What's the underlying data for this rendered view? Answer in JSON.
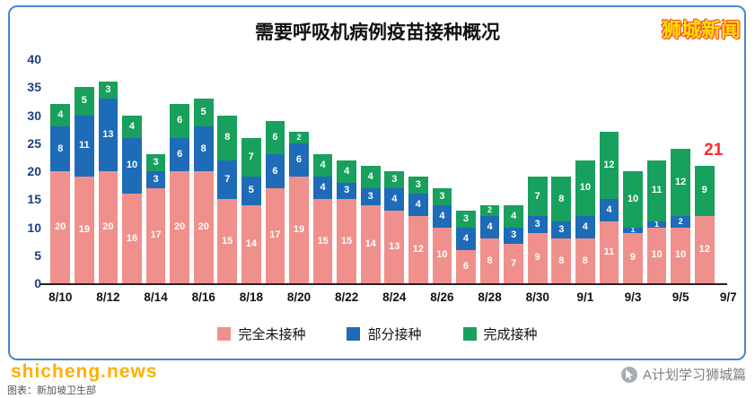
{
  "watermarks": {
    "top_right": "狮城新闻",
    "bottom_left": "shicheng.news",
    "source_note": "图表：新加坡卫生部",
    "bottom_right": "A计划学习狮城篇"
  },
  "chart_data": {
    "type": "bar",
    "stacked": true,
    "title": "需要呼吸机病例疫苗接种概况",
    "ylim": [
      0,
      40
    ],
    "yticks": [
      0,
      5,
      10,
      15,
      20,
      25,
      30,
      35,
      40
    ],
    "grid": false,
    "legend_position": "bottom",
    "xtick_labels": [
      "8/10",
      "8/12",
      "8/14",
      "8/16",
      "8/18",
      "8/20",
      "8/22",
      "8/24",
      "8/26",
      "8/28",
      "8/30",
      "9/1",
      "9/3",
      "9/5",
      "9/7"
    ],
    "categories": [
      "8/10",
      "8/11",
      "8/12",
      "8/13",
      "8/14",
      "8/15",
      "8/16",
      "8/17",
      "8/18",
      "8/19",
      "8/20",
      "8/21",
      "8/22",
      "8/23",
      "8/24",
      "8/25",
      "8/26",
      "8/27",
      "8/28",
      "8/29",
      "8/30",
      "8/31",
      "9/1",
      "9/2",
      "9/3",
      "9/4",
      "9/5",
      "9/6"
    ],
    "series": [
      {
        "name": "完全未接种",
        "color": "#f0908c",
        "values": [
          20,
          19,
          20,
          16,
          17,
          20,
          20,
          15,
          14,
          17,
          19,
          15,
          15,
          14,
          13,
          12,
          10,
          6,
          8,
          7,
          9,
          8,
          8,
          11,
          9,
          10,
          10,
          12
        ]
      },
      {
        "name": "部分接种",
        "color": "#1e6bb8",
        "values": [
          8,
          11,
          13,
          10,
          3,
          6,
          8,
          7,
          5,
          6,
          6,
          4,
          3,
          3,
          4,
          4,
          4,
          4,
          4,
          3,
          3,
          3,
          4,
          4,
          1,
          1,
          2,
          0
        ]
      },
      {
        "name": "完成接种",
        "color": "#18a05d",
        "values": [
          4,
          5,
          3,
          4,
          3,
          6,
          5,
          8,
          7,
          6,
          2,
          4,
          4,
          4,
          3,
          3,
          3,
          3,
          2,
          4,
          7,
          8,
          10,
          12,
          10,
          11,
          12,
          9
        ]
      }
    ],
    "annotation": {
      "text": "21",
      "color": "#ff2b2b",
      "x_index": 27
    }
  }
}
